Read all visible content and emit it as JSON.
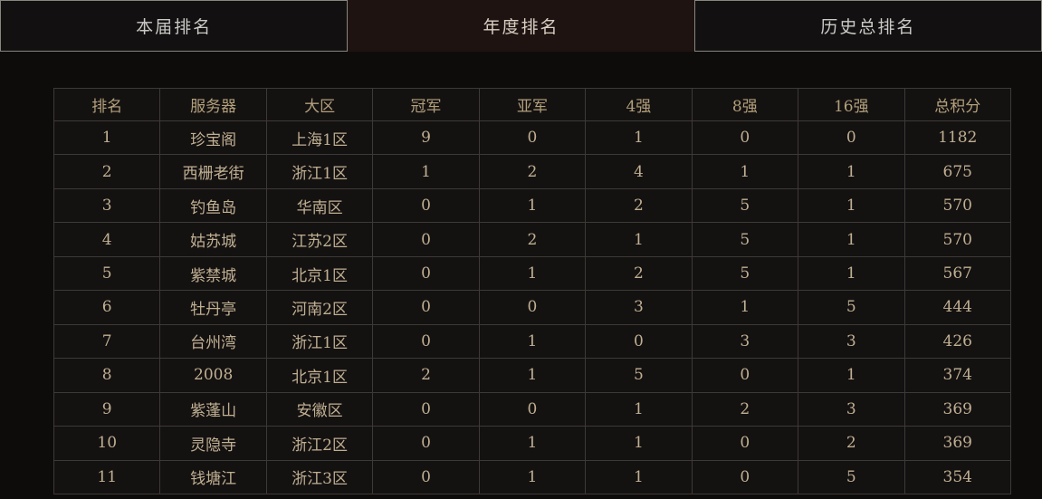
{
  "tabs": [
    {
      "label": "本届排名",
      "active": false
    },
    {
      "label": "年度排名",
      "active": true
    },
    {
      "label": "历史总排名",
      "active": false
    }
  ],
  "table": {
    "headers": [
      "排名",
      "服务器",
      "大区",
      "冠军",
      "亚军",
      "4强",
      "8强",
      "16强",
      "总积分"
    ],
    "rows": [
      [
        "1",
        "珍宝阁",
        "上海1区",
        "9",
        "0",
        "1",
        "0",
        "0",
        "1182"
      ],
      [
        "2",
        "西栅老街",
        "浙江1区",
        "1",
        "2",
        "4",
        "1",
        "1",
        "675"
      ],
      [
        "3",
        "钓鱼岛",
        "华南区",
        "0",
        "1",
        "2",
        "5",
        "1",
        "570"
      ],
      [
        "4",
        "姑苏城",
        "江苏2区",
        "0",
        "2",
        "1",
        "5",
        "1",
        "570"
      ],
      [
        "5",
        "紫禁城",
        "北京1区",
        "0",
        "1",
        "2",
        "5",
        "1",
        "567"
      ],
      [
        "6",
        "牡丹亭",
        "河南2区",
        "0",
        "0",
        "3",
        "1",
        "5",
        "444"
      ],
      [
        "7",
        "台州湾",
        "浙江1区",
        "0",
        "1",
        "0",
        "3",
        "3",
        "426"
      ],
      [
        "8",
        "2008",
        "北京1区",
        "2",
        "1",
        "5",
        "0",
        "1",
        "374"
      ],
      [
        "9",
        "紫蓬山",
        "安徽区",
        "0",
        "0",
        "1",
        "2",
        "3",
        "369"
      ],
      [
        "10",
        "灵隐寺",
        "浙江2区",
        "0",
        "1",
        "1",
        "0",
        "2",
        "369"
      ],
      [
        "11",
        "钱塘江",
        "浙江3区",
        "0",
        "1",
        "1",
        "0",
        "5",
        "354"
      ]
    ]
  },
  "colors": {
    "page_background": "#0e0c0b",
    "tab_inactive_background": "#121010",
    "tab_active_background": "#1f1312",
    "tab_border": "#89857f",
    "tab_text": "#cbc9c6",
    "tab_active_text": "#d8cfc2",
    "table_border": "#3c3936",
    "table_cell_background": "#141111",
    "header_text": "#b2a07b",
    "cell_text": "#c0b092"
  }
}
